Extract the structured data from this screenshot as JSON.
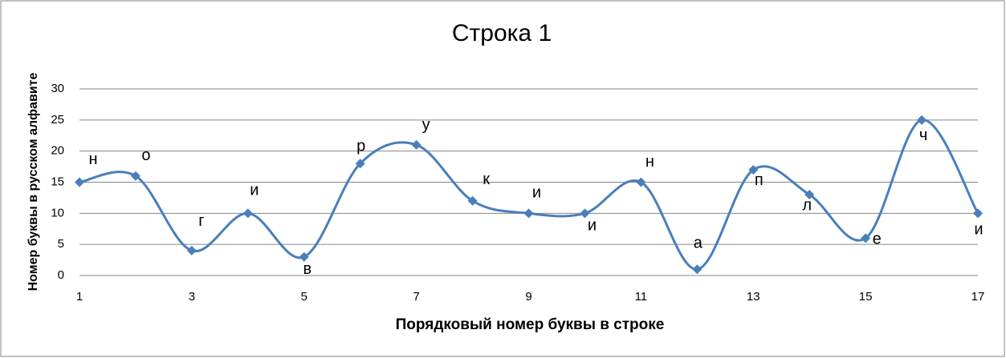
{
  "chart_data": {
    "type": "line",
    "title": "Строка 1",
    "x_label": "Порядковый номер буквы в строке",
    "y_label": "Номер буквы в русском алфавите",
    "series": [
      {
        "color": "#4a7ebb",
        "x": [
          1,
          2,
          3,
          4,
          5,
          6,
          7,
          8,
          9,
          10,
          11,
          12,
          13,
          14,
          15,
          16,
          17
        ],
        "values": [
          15,
          16,
          4,
          10,
          3,
          18,
          21,
          12,
          10,
          10,
          15,
          1,
          17,
          13,
          6,
          25,
          10
        ],
        "value_labels": [
          "н",
          "о",
          "г",
          "и",
          "в",
          "р",
          "у",
          "к",
          "и",
          "и",
          "н",
          "а",
          "п",
          "л",
          "е",
          "ч",
          "и"
        ]
      }
    ],
    "xlim": [
      1,
      17
    ],
    "xticks": [
      1,
      3,
      5,
      7,
      9,
      11,
      13,
      15,
      17
    ],
    "ylim": [
      0,
      30
    ],
    "yticks": [
      0,
      5,
      10,
      15,
      20,
      25,
      30
    ],
    "grid": true
  }
}
